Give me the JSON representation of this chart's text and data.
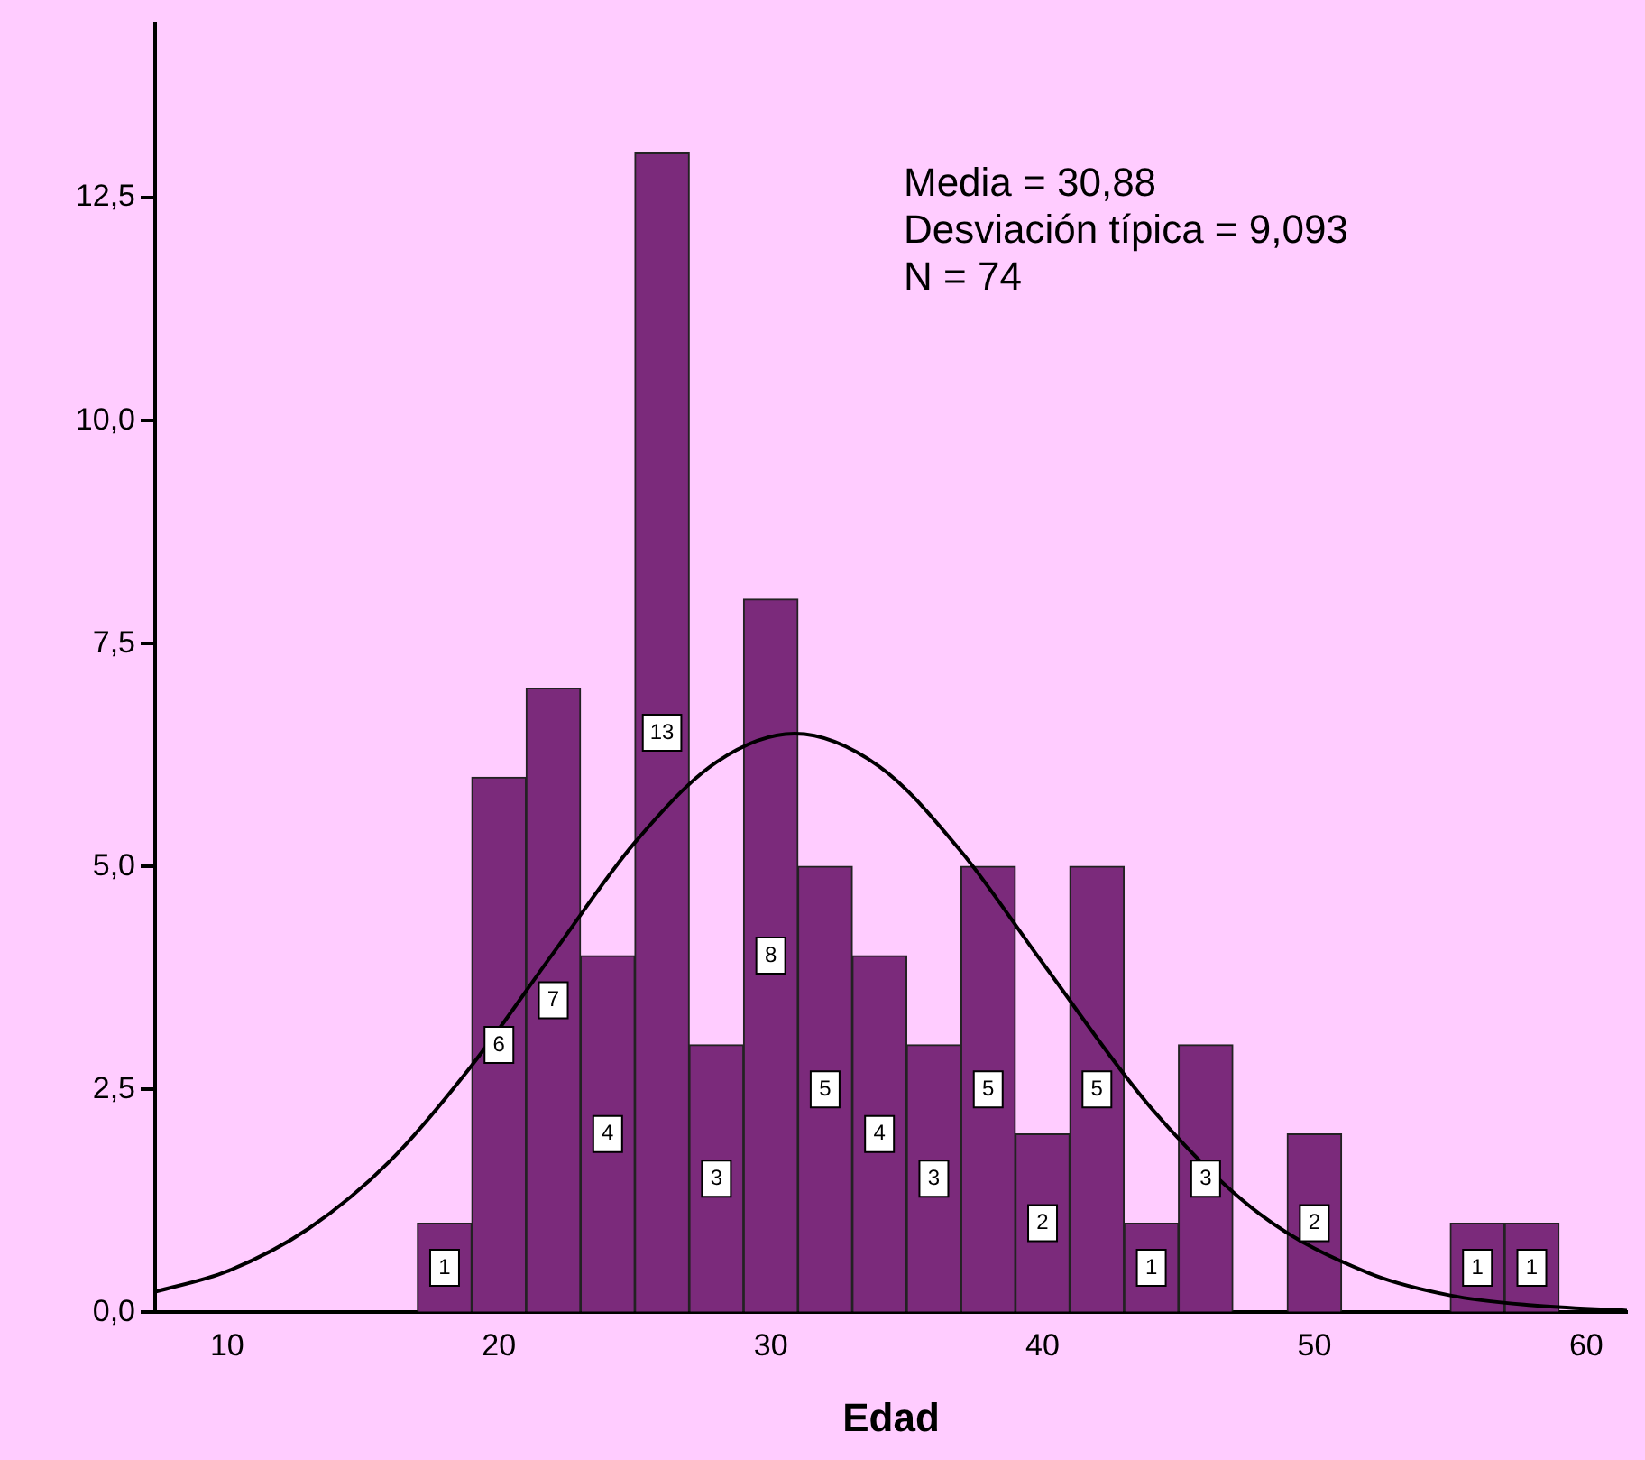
{
  "chart_data": {
    "type": "histogram",
    "xlabel": "Edad",
    "bins": [
      17,
      19,
      21,
      23,
      25,
      27,
      29,
      31,
      33,
      35,
      37,
      39,
      41,
      43,
      45,
      47,
      49,
      51,
      53,
      55,
      57,
      59
    ],
    "values": [
      1,
      6,
      7,
      4,
      13,
      3,
      8,
      5,
      4,
      3,
      5,
      2,
      5,
      1,
      3,
      0,
      2,
      0,
      0,
      1,
      1
    ],
    "value_labels": [
      "1",
      "6",
      "7",
      "4",
      "13",
      "3",
      "8",
      "5",
      "4",
      "3",
      "5",
      "2",
      "5",
      "1",
      "3",
      null,
      "2",
      null,
      null,
      "1",
      "1"
    ],
    "color": "#7b2a7b",
    "series": [
      {
        "type": "line",
        "color": "#000000",
        "x": [
          7.35,
          10,
          13,
          16,
          19,
          22,
          25,
          28,
          30.88,
          34,
          37,
          40,
          44,
          48,
          52,
          55,
          58,
          61.5
        ],
        "values": [
          0.23,
          0.46,
          0.94,
          1.7,
          2.77,
          4.03,
          5.27,
          6.17,
          6.49,
          6.12,
          5.17,
          3.92,
          2.29,
          1.1,
          0.44,
          0.19,
          0.08,
          0.02
        ]
      }
    ],
    "annotations": [
      "Media = 30,88",
      "Desviación típica = 9,093",
      "N = 74"
    ],
    "xlim": [
      7.35,
      61.5
    ],
    "xticks": [
      10,
      20,
      30,
      40,
      50,
      60
    ],
    "ylim": [
      0,
      14.45
    ],
    "yticks": [
      {
        "value": 0,
        "label": "0,0"
      },
      {
        "value": 2.5,
        "label": "2,5"
      },
      {
        "value": 5,
        "label": "5,0"
      },
      {
        "value": 7.5,
        "label": "7,5"
      },
      {
        "value": 10,
        "label": "10,0"
      },
      {
        "value": 12.5,
        "label": "12,5"
      }
    ],
    "grid": false,
    "legend": false,
    "marker": "none",
    "line_style": "solid"
  }
}
